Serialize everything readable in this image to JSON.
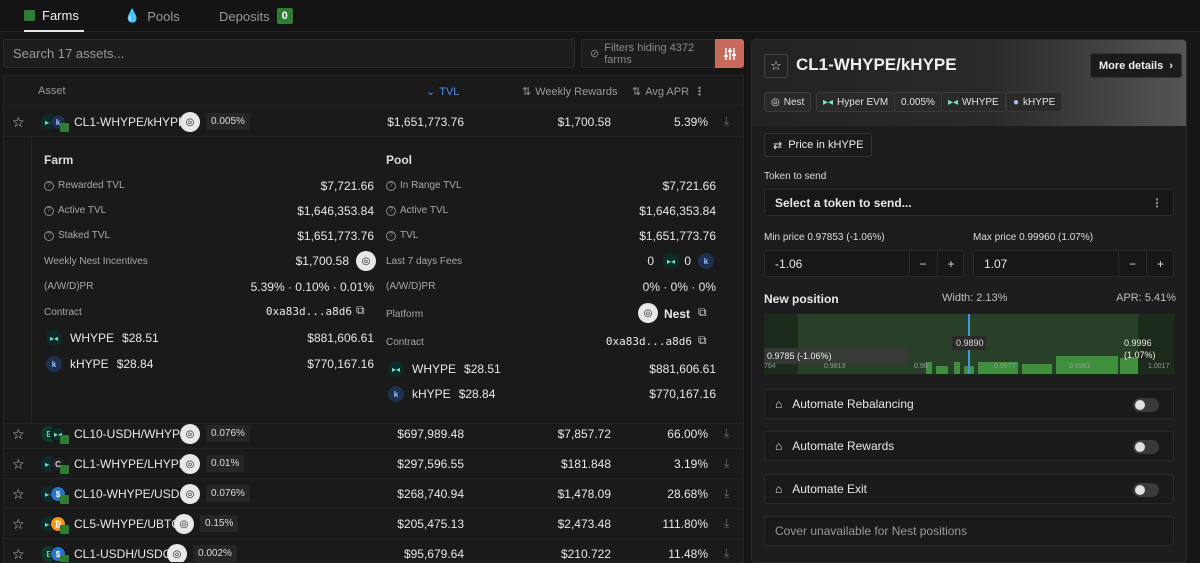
{
  "tabs": [
    {
      "label": "Farms",
      "icon": "farm-icon"
    },
    {
      "label": "Pools",
      "icon": "drop-icon"
    },
    {
      "label": "Deposits",
      "badge": "0"
    }
  ],
  "search": {
    "placeholder": "Search 17 assets..."
  },
  "filters": {
    "label": "Filters hiding 4372 farms"
  },
  "table": {
    "headers": {
      "asset": "Asset",
      "tvl": "TVL",
      "weekly": "Weekly Rewards",
      "apr": "Avg APR"
    },
    "rows": [
      {
        "pair": "CL1-WHYPE/kHYPE",
        "fee": "0.005%",
        "tvl": "$1,651,773.76",
        "weekly": "$1,700.58",
        "apr": "5.39%"
      },
      {
        "pair": "CL10-USDH/WHYPE",
        "fee": "0.076%",
        "tvl": "$697,989.48",
        "weekly": "$7,857.72",
        "apr": "66.00%"
      },
      {
        "pair": "CL1-WHYPE/LHYPE",
        "fee": "0.01%",
        "tvl": "$297,596.55",
        "weekly": "$181.848",
        "apr": "3.19%"
      },
      {
        "pair": "CL10-WHYPE/USDC",
        "fee": "0.076%",
        "tvl": "$268,740.94",
        "weekly": "$1,478.09",
        "apr": "28.68%"
      },
      {
        "pair": "CL5-WHYPE/UBTC",
        "fee": "0.15%",
        "tvl": "$205,475.13",
        "weekly": "$2,473.48",
        "apr": "111.80%"
      },
      {
        "pair": "CL1-USDH/USDC",
        "fee": "0.002%",
        "tvl": "$95,679.64",
        "weekly": "$210.722",
        "apr": "11.48%"
      }
    ]
  },
  "farm": {
    "title": "Farm",
    "rewarded_tvl_label": "Rewarded TVL",
    "rewarded_tvl": "$7,721.66",
    "active_tvl_label": "Active TVL",
    "active_tvl": "$1,646,353.84",
    "staked_tvl_label": "Staked TVL",
    "staked_tvl": "$1,651,773.76",
    "incentives_label": "Weekly Nest Incentives",
    "incentives": "$1,700.58",
    "awdpr_label": "(A/W/D)PR",
    "awdpr": "5.39%  ·  0.10%  ·  0.01%",
    "contract_label": "Contract",
    "contract": "0xa83d...a8d6",
    "tokens": [
      {
        "symbol": "WHYPE",
        "price": "$28.51",
        "value": "$881,606.61"
      },
      {
        "symbol": "kHYPE",
        "price": "$28.84",
        "value": "$770,167.16"
      }
    ]
  },
  "pool": {
    "title": "Pool",
    "in_range_label": "In Range TVL",
    "in_range": "$7,721.66",
    "active_tvl_label": "Active TVL",
    "active_tvl": "$1,646,353.84",
    "tvl_label": "TVL",
    "tvl": "$1,651,773.76",
    "fees_label": "Last 7 days Fees",
    "fee_a": "0",
    "fee_b": "0",
    "awdpr_label": "(A/W/D)PR",
    "awdpr": "0%  ·  0%  ·  0%",
    "platform_label": "Platform",
    "platform": "Nest",
    "contract_label": "Contract",
    "contract": "0xa83d...a8d6",
    "tokens": [
      {
        "symbol": "WHYPE",
        "price": "$28.51",
        "value": "$881,606.61"
      },
      {
        "symbol": "kHYPE",
        "price": "$28.84",
        "value": "$770,167.16"
      }
    ]
  },
  "panel": {
    "title": "CL1-WHYPE/kHYPE",
    "more_details": "More details",
    "tags": [
      "Nest",
      "Hyper EVM",
      "0.005%",
      "WHYPE",
      "kHYPE"
    ],
    "price_in": "Price in kHYPE",
    "token_to_send_label": "Token to send",
    "token_select": "Select a token to send...",
    "min_price_label": "Min price 0.97853 (-1.06%)",
    "max_price_label": "Max price 0.99960 (1.07%)",
    "min_value": "-1.06",
    "max_value": "1.07",
    "new_position_label": "New position",
    "width": "Width: 2.13%",
    "apr": "APR: 5.41%",
    "chart_center": "0.9890",
    "chart_min": "0.9785 (-1.06%)",
    "chart_max_line1": "0.9996",
    "chart_max_line2": "(1.07%)",
    "chart_ticks": [
      "764",
      "0.9813",
      "0.98",
      "0.9961",
      "0.9977",
      "1.0017"
    ],
    "automate_rebalancing": "Automate Rebalancing",
    "automate_rewards": "Automate Rewards",
    "automate_exit": "Automate Exit",
    "cover": "Cover unavailable for Nest positions"
  },
  "colors": {
    "accent_blue": "#4a8fe0",
    "green": "#2e7d32",
    "filter_btn": "#c9695c"
  }
}
